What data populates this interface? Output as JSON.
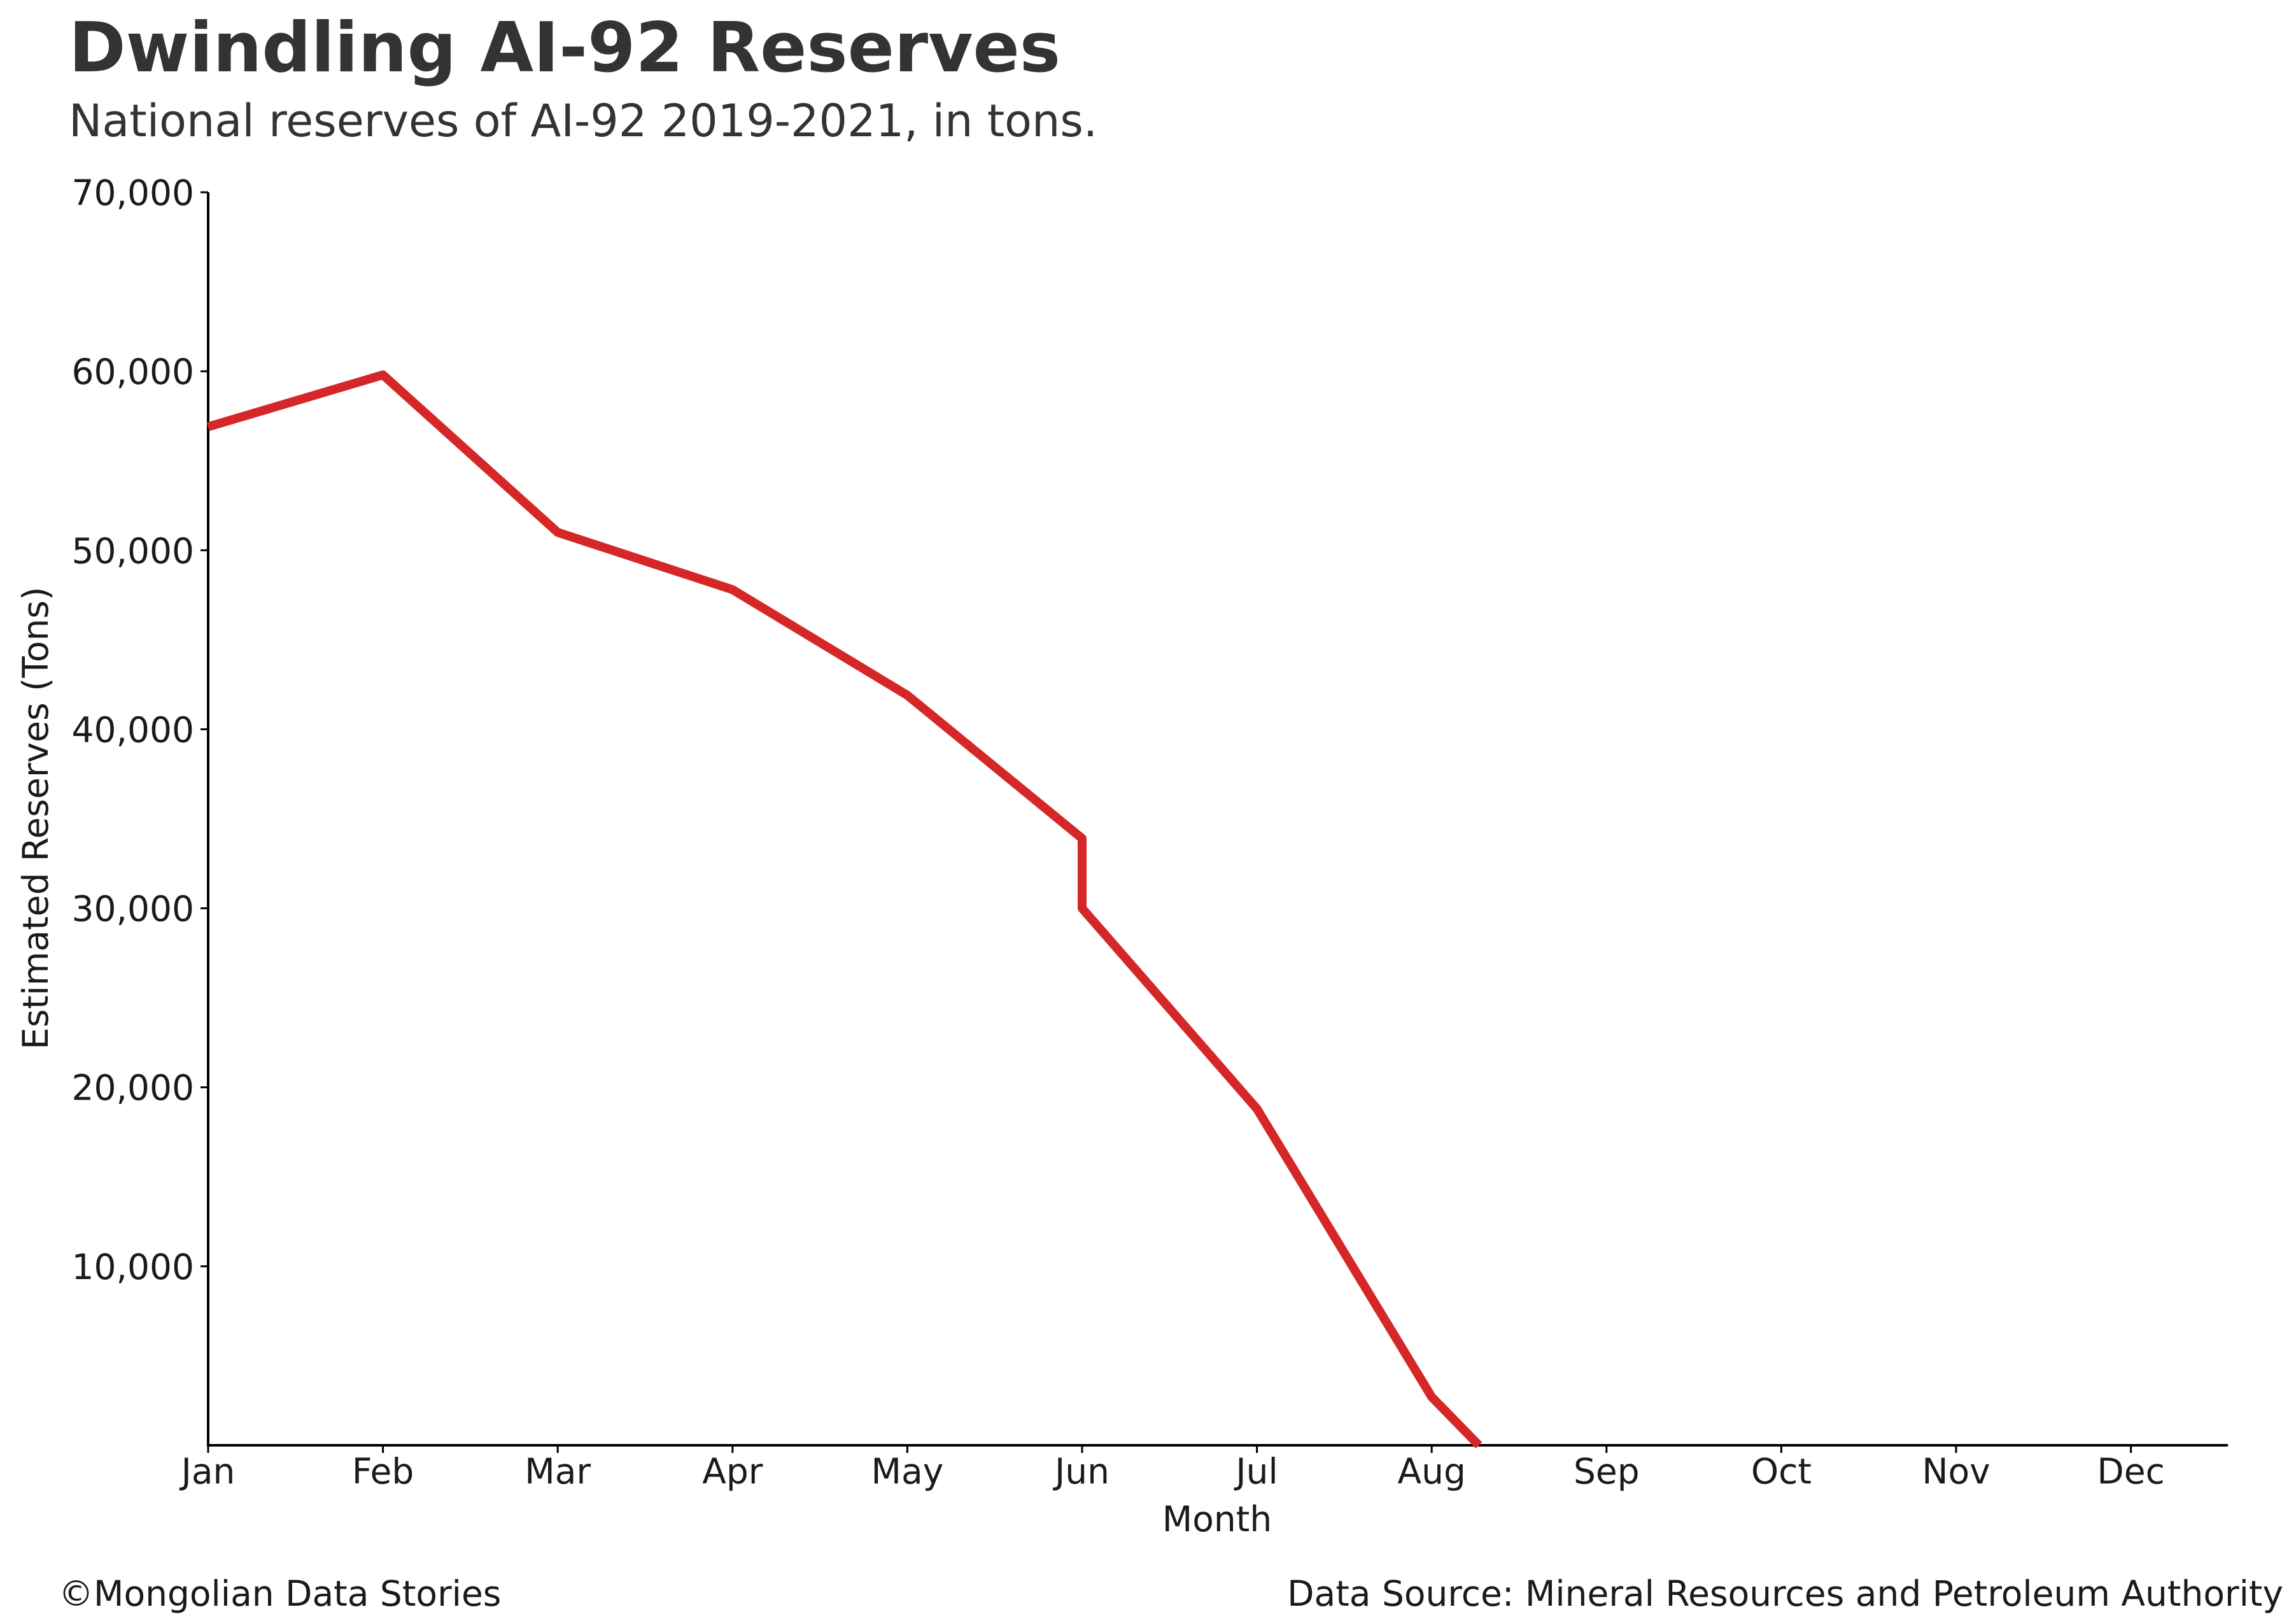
{
  "chart_data": {
    "type": "line",
    "title": "Dwindling AI-92 Reserves",
    "subtitle": "National reserves of AI-92 2019-2021, in tons.",
    "xlabel": "Month",
    "ylabel": "Estimated Reserves (Tons)",
    "categories": [
      "Jan",
      "Feb",
      "Mar",
      "Apr",
      "May",
      "Jun",
      "Jul",
      "Aug",
      "Sep",
      "Oct",
      "Nov",
      "Dec"
    ],
    "ylim": [
      0,
      70000
    ],
    "yticks": [
      10000,
      20000,
      30000,
      40000,
      50000,
      60000,
      70000
    ],
    "ytick_labels": [
      "10,000",
      "20,000",
      "30,000",
      "40,000",
      "50,000",
      "60,000",
      "70,000"
    ],
    "grid": false,
    "series": [
      {
        "color": "#d62728",
        "points": [
          {
            "x": "Jan",
            "y": 56900
          },
          {
            "x": "Feb",
            "y": 59800
          },
          {
            "x": "Mar",
            "y": 51000
          },
          {
            "x": "Apr",
            "y": 47800
          },
          {
            "x": "May",
            "y": 41900
          },
          {
            "x": "Jun",
            "y": 33900
          },
          {
            "x": "Jun",
            "y": 30000
          },
          {
            "x": "Jul",
            "y": 18800
          },
          {
            "x": "Aug",
            "y": 2700
          },
          {
            "x": "Aug",
            "y": 0
          }
        ]
      }
    ]
  },
  "footer": {
    "credit": "©Mongolian Data Stories",
    "source": "Data Source: Mineral Resources and Petroleum Authority"
  }
}
